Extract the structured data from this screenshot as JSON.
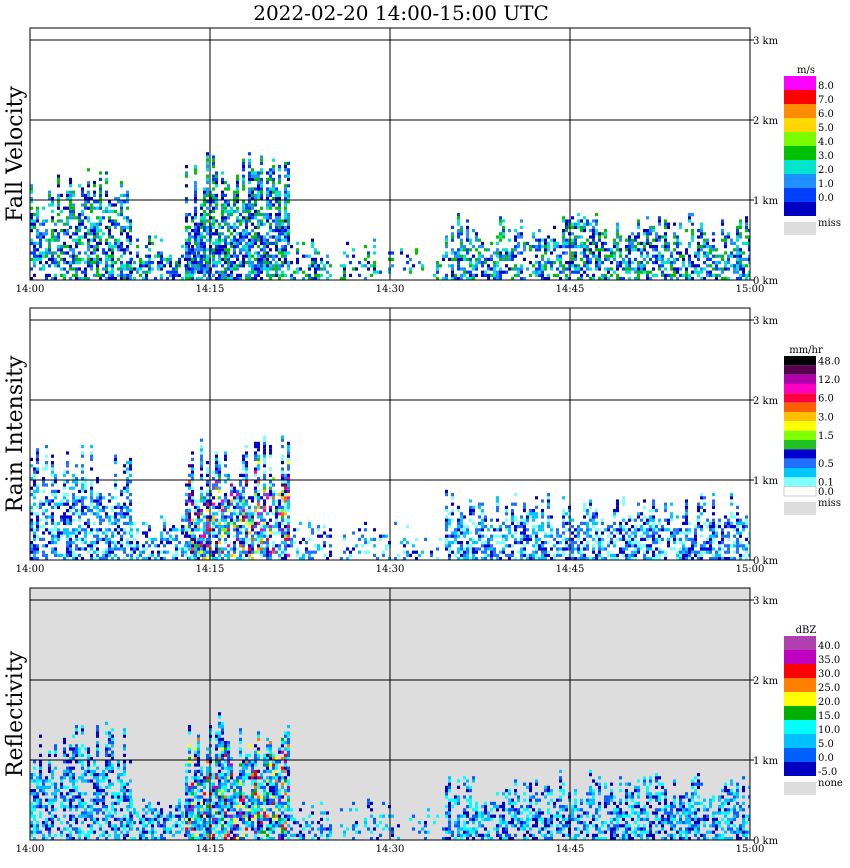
{
  "chart_data": {
    "type": "heatmap",
    "title": "2022-02-20  14:00-15:00 UTC",
    "x_ticks": [
      "14:00",
      "14:15",
      "14:30",
      "14:45",
      "15:00"
    ],
    "x_range": [
      "14:00",
      "15:00"
    ],
    "y_ticks": [
      "0 km",
      "1 km",
      "2 km",
      "3 km"
    ],
    "y_range_km": [
      0,
      3
    ],
    "grid": true,
    "panels": [
      {
        "name": "Fall Velocity",
        "unit": "m/s",
        "background": "#ffffff",
        "colorbar": [
          {
            "label": "8.0",
            "color": "#ff00ff"
          },
          {
            "label": "7.0",
            "color": "#ff0000"
          },
          {
            "label": "6.0",
            "color": "#ff8c00"
          },
          {
            "label": "5.0",
            "color": "#ffd700"
          },
          {
            "label": "4.0",
            "color": "#7cfc00"
          },
          {
            "label": "3.0",
            "color": "#00c000"
          },
          {
            "label": "2.0",
            "color": "#00e5cc"
          },
          {
            "label": "1.0",
            "color": "#1e90ff"
          },
          {
            "label": "0.0",
            "color": "#0040ff"
          },
          {
            "label": "",
            "color": "#0000c0"
          }
        ],
        "miss_label": "miss",
        "miss_color": "#dddddd"
      },
      {
        "name": "Rain Intensity",
        "unit": "mm/hr",
        "background": "#ffffff",
        "colorbar": [
          {
            "label": "48.0",
            "color": "#000000"
          },
          {
            "label": "",
            "color": "#5a0050"
          },
          {
            "label": "12.0",
            "color": "#b000b0"
          },
          {
            "label": "",
            "color": "#ff00c0"
          },
          {
            "label": "6.0",
            "color": "#ff0040"
          },
          {
            "label": "",
            "color": "#ff6000"
          },
          {
            "label": "3.0",
            "color": "#ffc000"
          },
          {
            "label": "",
            "color": "#ffff00"
          },
          {
            "label": "1.5",
            "color": "#80ff00"
          },
          {
            "label": "",
            "color": "#20c020"
          },
          {
            "label": "",
            "color": "#0000d0"
          },
          {
            "label": "0.5",
            "color": "#1e70ff"
          },
          {
            "label": "",
            "color": "#00c8ff"
          },
          {
            "label": "0.1",
            "color": "#80ffff"
          },
          {
            "label": "0.0",
            "color": "#ffffff"
          }
        ],
        "miss_label": "miss",
        "miss_color": "#dddddd"
      },
      {
        "name": "Reflectivity",
        "unit": "dBZ",
        "background": "#dddddd",
        "colorbar": [
          {
            "label": "40.0",
            "color": "#b040b0"
          },
          {
            "label": "35.0",
            "color": "#c000c0"
          },
          {
            "label": "30.0",
            "color": "#ff0000"
          },
          {
            "label": "25.0",
            "color": "#ff8000"
          },
          {
            "label": "20.0",
            "color": "#ffff00"
          },
          {
            "label": "15.0",
            "color": "#00b000"
          },
          {
            "label": "10.0",
            "color": "#00ffff"
          },
          {
            "label": "5.0",
            "color": "#00c0ff"
          },
          {
            "label": "0.0",
            "color": "#0060ff"
          },
          {
            "label": "-5.0",
            "color": "#0000c0"
          }
        ],
        "miss_label": "none",
        "miss_color": "#dddddd"
      }
    ]
  }
}
